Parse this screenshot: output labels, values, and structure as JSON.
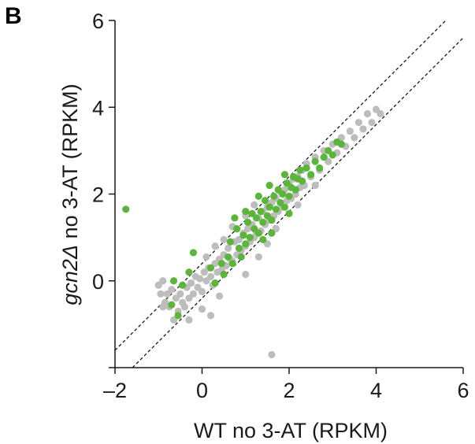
{
  "panel_label": "B",
  "chart_data": {
    "type": "scatter",
    "title": "",
    "xlabel": "WT no 3-AT (RPKM)",
    "ylabel_prefix": "gcn2Δ",
    "ylabel_suffix": " no 3-AT (RPKM)",
    "xlim": [
      -2,
      6
    ],
    "ylim": [
      -2,
      6
    ],
    "xticks": [
      -2,
      0,
      2,
      4,
      6
    ],
    "yticks": [
      0,
      2,
      4,
      6
    ],
    "xtick_labels": [
      "–2",
      "0",
      "2",
      "4",
      "6"
    ],
    "ytick_labels": [
      "0",
      "2",
      "4",
      "6"
    ],
    "grid": false,
    "colors": {
      "other": "#bdbdbd",
      "highlight": "#5bb53a",
      "axis": "#1a1a1a",
      "guide": "#1a1a1a"
    },
    "guide_lines": [
      {
        "slope": 1,
        "intercept": 0.4
      },
      {
        "slope": 1,
        "intercept": -0.4
      }
    ],
    "series": [
      {
        "color": "#bdbdbd",
        "points": [
          [
            -1.0,
            -0.1
          ],
          [
            -0.9,
            0.0
          ],
          [
            -0.85,
            -0.5
          ],
          [
            -0.8,
            -0.3
          ],
          [
            -0.75,
            -0.6
          ],
          [
            -0.7,
            -0.2
          ],
          [
            -0.65,
            -0.9
          ],
          [
            -0.6,
            -0.4
          ],
          [
            -0.55,
            -0.7
          ],
          [
            -0.5,
            -0.3
          ],
          [
            -0.45,
            -0.5
          ],
          [
            -0.4,
            -0.6
          ],
          [
            -0.35,
            -0.15
          ],
          [
            -0.3,
            -0.4
          ],
          [
            -0.25,
            -0.05
          ],
          [
            -0.2,
            -0.3
          ],
          [
            -0.15,
            0.1
          ],
          [
            -0.1,
            -0.15
          ],
          [
            -0.05,
            0.05
          ],
          [
            0.0,
            -0.25
          ],
          [
            0.05,
            0.2
          ],
          [
            0.1,
            0.0
          ],
          [
            0.15,
            0.3
          ],
          [
            0.2,
            0.1
          ],
          [
            0.25,
            -0.1
          ],
          [
            0.3,
            0.4
          ],
          [
            0.35,
            0.2
          ],
          [
            0.4,
            0.5
          ],
          [
            0.45,
            0.25
          ],
          [
            0.5,
            0.6
          ],
          [
            0.55,
            0.35
          ],
          [
            0.6,
            0.75
          ],
          [
            0.65,
            0.5
          ],
          [
            0.7,
            0.45
          ],
          [
            0.75,
            0.9
          ],
          [
            0.8,
            0.6
          ],
          [
            0.85,
            0.95
          ],
          [
            0.9,
            0.7
          ],
          [
            0.95,
            1.1
          ],
          [
            1.0,
            0.8
          ],
          [
            1.05,
            1.2
          ],
          [
            1.1,
            0.9
          ],
          [
            1.15,
            1.3
          ],
          [
            1.2,
            1.0
          ],
          [
            1.25,
            1.1
          ],
          [
            1.3,
            1.45
          ],
          [
            1.35,
            1.15
          ],
          [
            1.4,
            1.6
          ],
          [
            1.45,
            1.3
          ],
          [
            1.5,
            1.7
          ],
          [
            1.55,
            1.4
          ],
          [
            1.6,
            1.8
          ],
          [
            1.65,
            1.5
          ],
          [
            1.7,
            1.9
          ],
          [
            1.75,
            1.6
          ],
          [
            1.8,
            2.05
          ],
          [
            1.85,
            1.7
          ],
          [
            1.9,
            2.1
          ],
          [
            1.95,
            1.85
          ],
          [
            2.0,
            2.25
          ],
          [
            2.05,
            1.9
          ],
          [
            2.1,
            2.35
          ],
          [
            2.15,
            2.0
          ],
          [
            2.2,
            2.4
          ],
          [
            2.25,
            2.15
          ],
          [
            2.3,
            2.55
          ],
          [
            2.35,
            2.2
          ],
          [
            2.4,
            2.7
          ],
          [
            2.5,
            2.4
          ],
          [
            2.6,
            2.85
          ],
          [
            2.7,
            2.55
          ],
          [
            2.8,
            3.0
          ],
          [
            2.9,
            2.75
          ],
          [
            3.0,
            3.15
          ],
          [
            3.1,
            2.95
          ],
          [
            3.2,
            3.3
          ],
          [
            3.3,
            3.1
          ],
          [
            3.4,
            3.45
          ],
          [
            3.5,
            3.3
          ],
          [
            3.6,
            3.65
          ],
          [
            3.7,
            3.5
          ],
          [
            3.8,
            3.85
          ],
          [
            3.9,
            3.65
          ],
          [
            4.0,
            3.95
          ],
          [
            4.1,
            3.85
          ],
          [
            0.4,
            -0.35
          ],
          [
            0.2,
            -0.8
          ],
          [
            0.0,
            -0.65
          ],
          [
            -0.3,
            -0.9
          ],
          [
            1.0,
            0.15
          ],
          [
            1.3,
            0.55
          ],
          [
            1.5,
            0.85
          ],
          [
            -0.9,
            -0.6
          ],
          [
            -0.95,
            -0.3
          ],
          [
            0.7,
            1.25
          ],
          [
            0.5,
            0.95
          ],
          [
            1.2,
            1.75
          ],
          [
            1.0,
            1.5
          ],
          [
            0.1,
            0.55
          ],
          [
            0.3,
            0.8
          ],
          [
            2.2,
            1.75
          ],
          [
            2.6,
            2.2
          ],
          [
            1.7,
            1.2
          ],
          [
            1.6,
            -1.7
          ]
        ]
      },
      {
        "color": "#5bb53a",
        "points": [
          [
            -1.75,
            1.65
          ],
          [
            -0.7,
            -0.55
          ],
          [
            -0.65,
            0.0
          ],
          [
            -0.55,
            -0.8
          ],
          [
            -0.45,
            -0.1
          ],
          [
            -0.3,
            0.2
          ],
          [
            -0.2,
            0.65
          ],
          [
            0.2,
            0.3
          ],
          [
            0.3,
            -0.05
          ],
          [
            0.45,
            0.4
          ],
          [
            0.5,
            0.15
          ],
          [
            0.6,
            0.55
          ],
          [
            0.65,
            0.9
          ],
          [
            0.7,
            0.4
          ],
          [
            0.8,
            1.2
          ],
          [
            0.85,
            0.75
          ],
          [
            0.9,
            0.55
          ],
          [
            0.95,
            1.05
          ],
          [
            1.0,
            0.85
          ],
          [
            1.05,
            1.35
          ],
          [
            1.1,
            1.0
          ],
          [
            1.15,
            1.55
          ],
          [
            1.2,
            1.2
          ],
          [
            1.25,
            1.45
          ],
          [
            1.3,
            1.1
          ],
          [
            1.35,
            1.6
          ],
          [
            1.4,
            1.35
          ],
          [
            1.45,
            1.85
          ],
          [
            1.5,
            1.5
          ],
          [
            1.55,
            1.7
          ],
          [
            1.6,
            1.4
          ],
          [
            1.65,
            1.95
          ],
          [
            1.7,
            1.65
          ],
          [
            1.75,
            2.1
          ],
          [
            1.8,
            1.8
          ],
          [
            1.85,
            2.0
          ],
          [
            1.9,
            1.7
          ],
          [
            1.95,
            2.25
          ],
          [
            2.0,
            1.95
          ],
          [
            2.05,
            2.15
          ],
          [
            2.1,
            2.4
          ],
          [
            2.15,
            2.1
          ],
          [
            2.2,
            2.35
          ],
          [
            2.25,
            2.55
          ],
          [
            2.3,
            2.3
          ],
          [
            2.4,
            2.6
          ],
          [
            2.5,
            2.45
          ],
          [
            2.6,
            2.75
          ],
          [
            2.7,
            2.6
          ],
          [
            2.8,
            2.85
          ],
          [
            2.9,
            3.0
          ],
          [
            3.0,
            2.9
          ],
          [
            3.1,
            3.2
          ],
          [
            3.2,
            3.15
          ],
          [
            1.3,
            1.95
          ],
          [
            1.55,
            2.2
          ],
          [
            1.9,
            2.45
          ],
          [
            0.75,
            1.45
          ],
          [
            1.0,
            1.6
          ],
          [
            1.6,
            1.1
          ],
          [
            2.0,
            1.55
          ],
          [
            1.4,
            0.95
          ]
        ]
      }
    ]
  }
}
